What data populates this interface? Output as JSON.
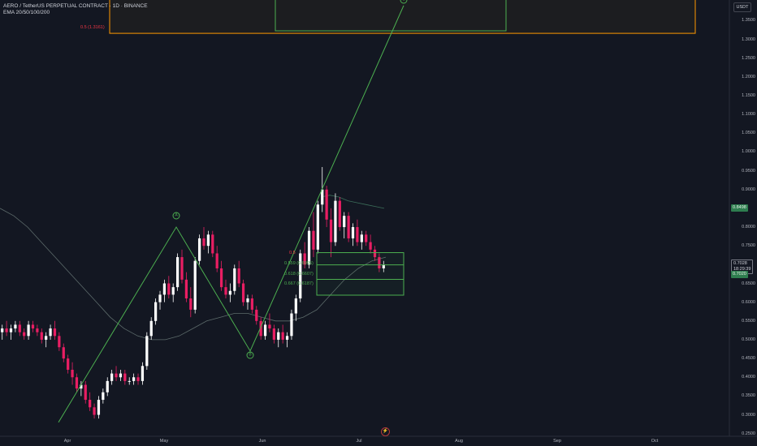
{
  "header": {
    "title": "AERO / TetherUS PERPETUAL CONTRACT · 1D · BINANCE",
    "indicator": "EMA 20/50/100/200"
  },
  "currency": "USDT",
  "price_axis": [
    {
      "label": "1.3500",
      "value": 1.35
    },
    {
      "label": "1.3000",
      "value": 1.3
    },
    {
      "label": "1.2500",
      "value": 1.25
    },
    {
      "label": "1.2000",
      "value": 1.2
    },
    {
      "label": "1.1500",
      "value": 1.15
    },
    {
      "label": "1.1000",
      "value": 1.1
    },
    {
      "label": "1.0500",
      "value": 1.05
    },
    {
      "label": "1.0000",
      "value": 1.0
    },
    {
      "label": "0.9500",
      "value": 0.95
    },
    {
      "label": "0.9000",
      "value": 0.9
    },
    {
      "label": "0.8000",
      "value": 0.8
    },
    {
      "label": "0.7500",
      "value": 0.75
    },
    {
      "label": "0.6500",
      "value": 0.65
    },
    {
      "label": "0.6000",
      "value": 0.6
    },
    {
      "label": "0.5500",
      "value": 0.55
    },
    {
      "label": "0.5000",
      "value": 0.5
    },
    {
      "label": "0.4500",
      "value": 0.45
    },
    {
      "label": "0.4000",
      "value": 0.4
    },
    {
      "label": "0.3500",
      "value": 0.35
    },
    {
      "label": "0.3000",
      "value": 0.3
    },
    {
      "label": "0.2500",
      "value": 0.25
    }
  ],
  "time_axis": [
    "Apr",
    "May",
    "Jun",
    "Jul",
    "Aug",
    "Sep",
    "Oct"
  ],
  "tags": {
    "ema_value": "0.8498",
    "last_price": "0.7028",
    "countdown": "18:29:39",
    "close_value": "0.7020"
  },
  "fib_labels": [
    {
      "text": "0.5 (1.3161)",
      "color": "#f23645",
      "price": 1.3161
    },
    {
      "text": "0.5",
      "color": "#f23645",
      "price": 0.732
    },
    {
      "text": "0.559 (0.6995)",
      "color": "#4caf50",
      "price": 0.6995
    },
    {
      "text": "0.618 (0.6607)",
      "color": "#4caf50",
      "price": 0.6607
    },
    {
      "text": "0.667 (0.6187)",
      "color": "#4caf50",
      "price": 0.6187
    }
  ],
  "waves": [
    "A",
    "B",
    "C"
  ],
  "bolt_icon": "lightning-icon",
  "colors": {
    "background": "#131722",
    "up": "#ffffff",
    "down": "#e91e63",
    "wave": "#4caf50",
    "ema": "#5d6b6b",
    "fib_box": "#4caf50",
    "target_box": "#ff9800"
  },
  "chart_data": {
    "type": "candlestick",
    "symbol": "AERO / TetherUS PERPETUAL CONTRACT",
    "timeframe": "1D",
    "y_range": [
      0.25,
      1.375
    ],
    "ohlc_profile": [
      [
        0.52,
        0.54,
        0.5,
        0.53
      ],
      [
        0.53,
        0.55,
        0.51,
        0.52
      ],
      [
        0.52,
        0.54,
        0.5,
        0.53
      ],
      [
        0.53,
        0.55,
        0.52,
        0.54
      ],
      [
        0.54,
        0.55,
        0.51,
        0.52
      ],
      [
        0.52,
        0.53,
        0.5,
        0.51
      ],
      [
        0.51,
        0.55,
        0.5,
        0.54
      ],
      [
        0.54,
        0.55,
        0.52,
        0.53
      ],
      [
        0.53,
        0.54,
        0.51,
        0.52
      ],
      [
        0.52,
        0.53,
        0.49,
        0.5
      ],
      [
        0.5,
        0.52,
        0.48,
        0.51
      ],
      [
        0.51,
        0.54,
        0.5,
        0.53
      ],
      [
        0.53,
        0.55,
        0.5,
        0.51
      ],
      [
        0.51,
        0.52,
        0.47,
        0.48
      ],
      [
        0.48,
        0.49,
        0.44,
        0.45
      ],
      [
        0.45,
        0.46,
        0.41,
        0.42
      ],
      [
        0.42,
        0.44,
        0.38,
        0.4
      ],
      [
        0.4,
        0.41,
        0.36,
        0.37
      ],
      [
        0.37,
        0.39,
        0.35,
        0.38
      ],
      [
        0.38,
        0.39,
        0.33,
        0.34
      ],
      [
        0.34,
        0.36,
        0.31,
        0.32
      ],
      [
        0.32,
        0.33,
        0.29,
        0.3
      ],
      [
        0.3,
        0.35,
        0.29,
        0.34
      ],
      [
        0.34,
        0.37,
        0.33,
        0.36
      ],
      [
        0.36,
        0.4,
        0.35,
        0.39
      ],
      [
        0.39,
        0.42,
        0.38,
        0.41
      ],
      [
        0.41,
        0.43,
        0.39,
        0.4
      ],
      [
        0.4,
        0.42,
        0.39,
        0.41
      ],
      [
        0.41,
        0.42,
        0.38,
        0.39
      ],
      [
        0.39,
        0.4,
        0.38,
        0.39
      ],
      [
        0.39,
        0.41,
        0.38,
        0.4
      ],
      [
        0.4,
        0.41,
        0.38,
        0.39
      ],
      [
        0.39,
        0.44,
        0.38,
        0.43
      ],
      [
        0.43,
        0.52,
        0.42,
        0.51
      ],
      [
        0.51,
        0.56,
        0.5,
        0.55
      ],
      [
        0.55,
        0.61,
        0.54,
        0.6
      ],
      [
        0.6,
        0.63,
        0.58,
        0.62
      ],
      [
        0.62,
        0.66,
        0.6,
        0.65
      ],
      [
        0.65,
        0.67,
        0.61,
        0.62
      ],
      [
        0.62,
        0.65,
        0.6,
        0.64
      ],
      [
        0.64,
        0.73,
        0.63,
        0.72
      ],
      [
        0.72,
        0.74,
        0.65,
        0.66
      ],
      [
        0.66,
        0.68,
        0.6,
        0.61
      ],
      [
        0.61,
        0.64,
        0.56,
        0.58
      ],
      [
        0.58,
        0.72,
        0.57,
        0.71
      ],
      [
        0.71,
        0.78,
        0.7,
        0.77
      ],
      [
        0.77,
        0.8,
        0.74,
        0.75
      ],
      [
        0.75,
        0.79,
        0.73,
        0.78
      ],
      [
        0.78,
        0.79,
        0.72,
        0.73
      ],
      [
        0.73,
        0.75,
        0.68,
        0.69
      ],
      [
        0.69,
        0.71,
        0.63,
        0.64
      ],
      [
        0.64,
        0.66,
        0.61,
        0.62
      ],
      [
        0.62,
        0.65,
        0.6,
        0.63
      ],
      [
        0.63,
        0.7,
        0.62,
        0.69
      ],
      [
        0.69,
        0.71,
        0.64,
        0.65
      ],
      [
        0.65,
        0.66,
        0.59,
        0.6
      ],
      [
        0.6,
        0.62,
        0.58,
        0.61
      ],
      [
        0.61,
        0.62,
        0.57,
        0.58
      ],
      [
        0.58,
        0.59,
        0.54,
        0.55
      ],
      [
        0.55,
        0.56,
        0.5,
        0.51
      ],
      [
        0.51,
        0.55,
        0.5,
        0.54
      ],
      [
        0.54,
        0.57,
        0.52,
        0.53
      ],
      [
        0.53,
        0.54,
        0.49,
        0.5
      ],
      [
        0.5,
        0.53,
        0.48,
        0.52
      ],
      [
        0.52,
        0.54,
        0.49,
        0.5
      ],
      [
        0.5,
        0.52,
        0.48,
        0.51
      ],
      [
        0.51,
        0.58,
        0.5,
        0.57
      ],
      [
        0.57,
        0.62,
        0.55,
        0.61
      ],
      [
        0.61,
        0.74,
        0.6,
        0.73
      ],
      [
        0.73,
        0.76,
        0.69,
        0.7
      ],
      [
        0.7,
        0.8,
        0.69,
        0.79
      ],
      [
        0.79,
        0.84,
        0.72,
        0.74
      ],
      [
        0.74,
        0.87,
        0.73,
        0.86
      ],
      [
        0.86,
        0.96,
        0.84,
        0.9
      ],
      [
        0.9,
        0.91,
        0.8,
        0.82
      ],
      [
        0.82,
        0.85,
        0.72,
        0.76
      ],
      [
        0.76,
        0.89,
        0.75,
        0.87
      ],
      [
        0.87,
        0.88,
        0.79,
        0.8
      ],
      [
        0.8,
        0.84,
        0.77,
        0.83
      ],
      [
        0.83,
        0.84,
        0.76,
        0.77
      ],
      [
        0.77,
        0.81,
        0.75,
        0.8
      ],
      [
        0.8,
        0.82,
        0.75,
        0.76
      ],
      [
        0.76,
        0.79,
        0.74,
        0.78
      ],
      [
        0.78,
        0.79,
        0.75,
        0.76
      ],
      [
        0.76,
        0.78,
        0.73,
        0.74
      ],
      [
        0.74,
        0.75,
        0.71,
        0.72
      ],
      [
        0.72,
        0.73,
        0.68,
        0.69
      ],
      [
        0.69,
        0.71,
        0.68,
        0.7
      ]
    ],
    "ema_profile": [
      0.85,
      0.83,
      0.8,
      0.76,
      0.72,
      0.68,
      0.64,
      0.6,
      0.56,
      0.53,
      0.51,
      0.5,
      0.5,
      0.51,
      0.53,
      0.55,
      0.56,
      0.57,
      0.57,
      0.56,
      0.55,
      0.55,
      0.56,
      0.58,
      0.62,
      0.66,
      0.69,
      0.71,
      0.72
    ],
    "ema_upper_profile": [
      0.88,
      0.885,
      0.88,
      0.87,
      0.865,
      0.86,
      0.855,
      0.85
    ],
    "abc_wave": [
      {
        "label": "A",
        "price": 0.8
      },
      {
        "label": "B",
        "price": 0.47
      },
      {
        "label": "C",
        "price": 1.39
      }
    ],
    "fib_box_prices": [
      0.732,
      0.6995,
      0.6607,
      0.6187
    ],
    "target_box_prices": [
      1.375,
      1.3161
    ]
  }
}
